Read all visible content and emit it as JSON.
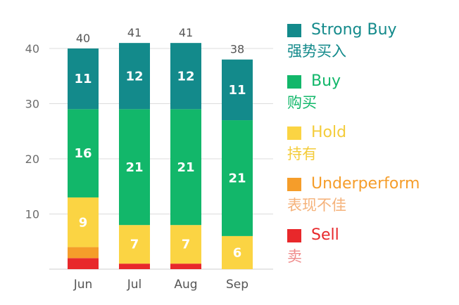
{
  "chart_data": {
    "type": "bar",
    "stacked": true,
    "categories": [
      "Jun",
      "Jul",
      "Aug",
      "Sep"
    ],
    "series": [
      {
        "name": "Sell",
        "name_zh": "卖",
        "color": "#e8282b",
        "values": [
          2,
          1,
          1,
          0
        ]
      },
      {
        "name": "Underperform",
        "name_zh": "表现不佳",
        "color": "#f59d2a",
        "values": [
          2,
          0,
          0,
          0
        ]
      },
      {
        "name": "Hold",
        "name_zh": "持有",
        "color": "#fbd443",
        "values": [
          9,
          7,
          7,
          6
        ]
      },
      {
        "name": "Buy",
        "name_zh": "购买",
        "color": "#12b76a",
        "values": [
          16,
          21,
          21,
          21
        ]
      },
      {
        "name": "Strong Buy",
        "name_zh": "强势买入",
        "color": "#138a8b",
        "values": [
          11,
          12,
          12,
          11
        ]
      }
    ],
    "totals": [
      40,
      41,
      41,
      38
    ],
    "segment_labels": {
      "Hold": [
        9,
        7,
        7,
        6
      ],
      "Buy": [
        16,
        21,
        21,
        21
      ],
      "Strong Buy": [
        11,
        12,
        12,
        11
      ]
    },
    "yticks": [
      10,
      20,
      30,
      40
    ],
    "ylim": [
      0,
      41
    ],
    "grid": true,
    "legend_position": "right",
    "legend_order": [
      "Strong Buy",
      "Buy",
      "Hold",
      "Underperform",
      "Sell"
    ]
  }
}
